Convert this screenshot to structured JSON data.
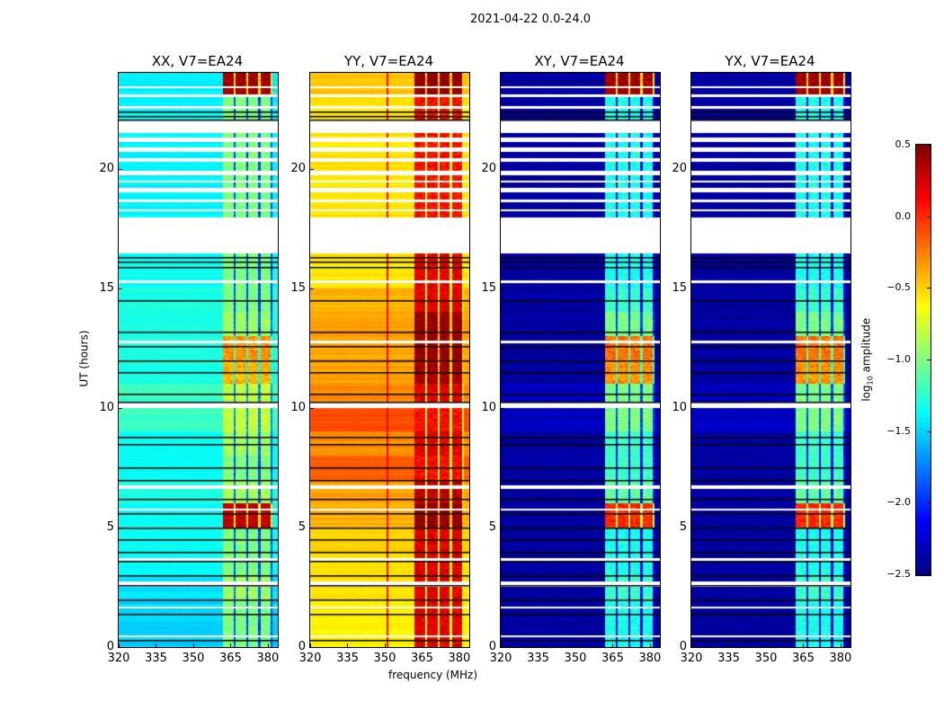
{
  "chart_data": {
    "type": "heatmap",
    "title": "2021-04-22 0.0-24.0",
    "xlabel": "frequency (MHz)",
    "ylabel": "UT (hours)",
    "xlim": [
      320,
      384
    ],
    "ylim": [
      0,
      24
    ],
    "xticks": [
      "320",
      "335",
      "350",
      "365",
      "380"
    ],
    "xtick_values": [
      320,
      335,
      350,
      365,
      380
    ],
    "yticks": [
      "0",
      "5",
      "10",
      "15",
      "20"
    ],
    "ytick_values": [
      0,
      5,
      10,
      15,
      20
    ],
    "colorbar": {
      "label_prefix": "log",
      "label_sub": "10",
      "label_suffix": " amplitude",
      "range": [
        -2.5,
        0.5
      ],
      "ticks": [
        "0.5",
        "0.0",
        "−0.5",
        "−1.0",
        "−1.5",
        "−2.0",
        "−2.5"
      ],
      "tick_values": [
        0.5,
        0.0,
        -0.5,
        -1.0,
        -1.5,
        -2.0,
        -2.5
      ],
      "colormap": "jet"
    },
    "rfi_band_mhz": [
      362,
      382
    ],
    "flagged_hours": [
      [
        0.4,
        0.48
      ],
      [
        1.6,
        1.68
      ],
      [
        2.5,
        2.75
      ],
      [
        3.62,
        3.7
      ],
      [
        5.72,
        5.8
      ],
      [
        6.6,
        6.75
      ],
      [
        10.0,
        10.2
      ],
      [
        12.7,
        12.8
      ],
      [
        15.2,
        15.32
      ],
      [
        16.45,
        17.95
      ],
      [
        18.2,
        18.3
      ],
      [
        18.6,
        18.72
      ],
      [
        19.0,
        19.18
      ],
      [
        19.4,
        19.5
      ],
      [
        19.7,
        19.9
      ],
      [
        20.3,
        20.45
      ],
      [
        20.7,
        20.9
      ],
      [
        21.1,
        21.3
      ],
      [
        21.5,
        22.0
      ],
      [
        22.5,
        22.6
      ],
      [
        23.0,
        23.1
      ],
      [
        23.35,
        23.45
      ]
    ],
    "black_line_hours": [
      0.3,
      1.4,
      2.0,
      2.6,
      3.0,
      3.6,
      4.0,
      4.5,
      5.0,
      5.6,
      6.2,
      7.0,
      7.5,
      8.5,
      8.8,
      10.25,
      10.6,
      11.5,
      12.0,
      12.6,
      13.2,
      14.5,
      15.9,
      16.1,
      16.3,
      22.05,
      22.2,
      22.4
    ],
    "panels": [
      {
        "title": "XX, V7=EA24",
        "background_by_hour": [
          -1.5,
          -1.5,
          -1.45,
          -1.35,
          -1.35,
          -1.35,
          -1.3,
          -1.35,
          -1.35,
          -1.2,
          -1.2,
          -1.3,
          -1.3,
          -1.3,
          -1.3,
          -1.35,
          -1.35,
          -1.4,
          -1.4,
          -1.4,
          -1.4,
          -1.4,
          -1.4,
          -1.4
        ],
        "rfi_by_hour": [
          -1.0,
          -1.0,
          -0.9,
          -1.0,
          -1.0,
          0.3,
          -0.9,
          -1.0,
          -0.9,
          -0.8,
          -0.8,
          -0.4,
          -0.3,
          -0.9,
          -1.0,
          -1.0,
          -1.0,
          -1.0,
          -1.0,
          -1.0,
          -1.0,
          -1.0,
          -1.0,
          0.4
        ]
      },
      {
        "title": "YY, V7=EA24",
        "background_by_hour": [
          -0.6,
          -0.6,
          -0.55,
          -0.55,
          -0.5,
          -0.4,
          -0.35,
          -0.15,
          -0.3,
          -0.1,
          -0.3,
          -0.35,
          -0.35,
          -0.35,
          -0.4,
          -0.55,
          -0.55,
          -0.55,
          -0.55,
          -0.55,
          -0.55,
          -0.55,
          -0.55,
          -0.45
        ],
        "rfi_by_hour": [
          0.2,
          0.2,
          0.2,
          0.2,
          0.2,
          0.45,
          0.3,
          0.1,
          0.2,
          0.1,
          0.2,
          0.4,
          0.45,
          0.45,
          0.2,
          0.2,
          0.2,
          0.2,
          0.1,
          0.1,
          0.1,
          0.1,
          0.1,
          0.45
        ],
        "narrow_line_mhz": 351
      },
      {
        "title": "XY, V7=EA24",
        "background_by_hour": [
          -2.4,
          -2.4,
          -2.4,
          -2.4,
          -2.4,
          -2.4,
          -2.4,
          -2.4,
          -2.4,
          -2.3,
          -2.3,
          -2.4,
          -2.4,
          -2.4,
          -2.4,
          -2.4,
          -2.4,
          -2.4,
          -2.4,
          -2.4,
          -2.4,
          -2.4,
          -2.4,
          -2.4
        ],
        "rfi_by_hour": [
          -1.3,
          -1.3,
          -1.2,
          -1.3,
          -1.3,
          0.0,
          -1.1,
          -1.2,
          -1.2,
          -1.0,
          -1.0,
          -0.3,
          -0.2,
          -1.0,
          -1.2,
          -1.3,
          -1.3,
          -1.3,
          -1.3,
          -1.3,
          -1.3,
          -1.3,
          -1.3,
          0.4
        ]
      },
      {
        "title": "YX, V7=EA24",
        "background_by_hour": [
          -2.4,
          -2.4,
          -2.4,
          -2.4,
          -2.4,
          -2.4,
          -2.4,
          -2.4,
          -2.4,
          -2.3,
          -2.3,
          -2.4,
          -2.4,
          -2.4,
          -2.4,
          -2.4,
          -2.4,
          -2.4,
          -2.4,
          -2.4,
          -2.4,
          -2.4,
          -2.4,
          -2.4
        ],
        "rfi_by_hour": [
          -1.3,
          -1.3,
          -1.2,
          -1.3,
          -1.3,
          0.0,
          -1.1,
          -1.2,
          -1.2,
          -1.0,
          -1.0,
          -0.3,
          -0.2,
          -1.0,
          -1.2,
          -1.3,
          -1.3,
          -1.3,
          -1.3,
          -1.3,
          -1.3,
          -1.3,
          -1.3,
          0.4
        ]
      }
    ]
  }
}
